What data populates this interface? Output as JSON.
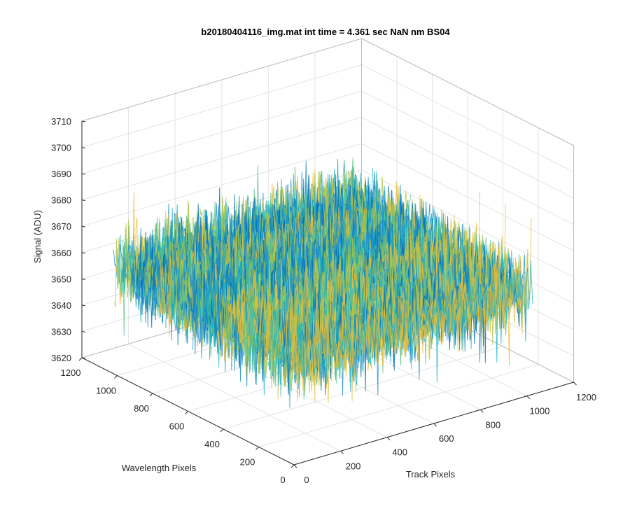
{
  "chart_data": {
    "type": "surface",
    "title": "b20180404116_img.mat int time = 4.361 sec  NaN nm BS04",
    "xlabel": "Track Pixels",
    "ylabel": "Wavelength Pixels",
    "zlabel": "Signal (ADU)",
    "xlim": [
      0,
      1200
    ],
    "ylim": [
      0,
      1200
    ],
    "zlim": [
      3620,
      3710
    ],
    "xticks": [
      "0",
      "200",
      "400",
      "600",
      "800",
      "1000",
      "1200"
    ],
    "yticks": [
      "0",
      "200",
      "400",
      "600",
      "800",
      "1000",
      "1200"
    ],
    "zticks": [
      "3620",
      "3630",
      "3640",
      "3650",
      "3660",
      "3670",
      "3680",
      "3690",
      "3700",
      "3710"
    ],
    "data_extent": {
      "x": [
        0,
        1024
      ],
      "y": [
        0,
        1024
      ]
    },
    "signal_mean": 3660,
    "signal_noise_range": [
      3625,
      3705
    ],
    "colormap": [
      "#0072BD",
      "#1A8FCF",
      "#1FB6C6",
      "#5CC48A",
      "#A8C64A",
      "#E6BE3A"
    ],
    "grid": true
  }
}
